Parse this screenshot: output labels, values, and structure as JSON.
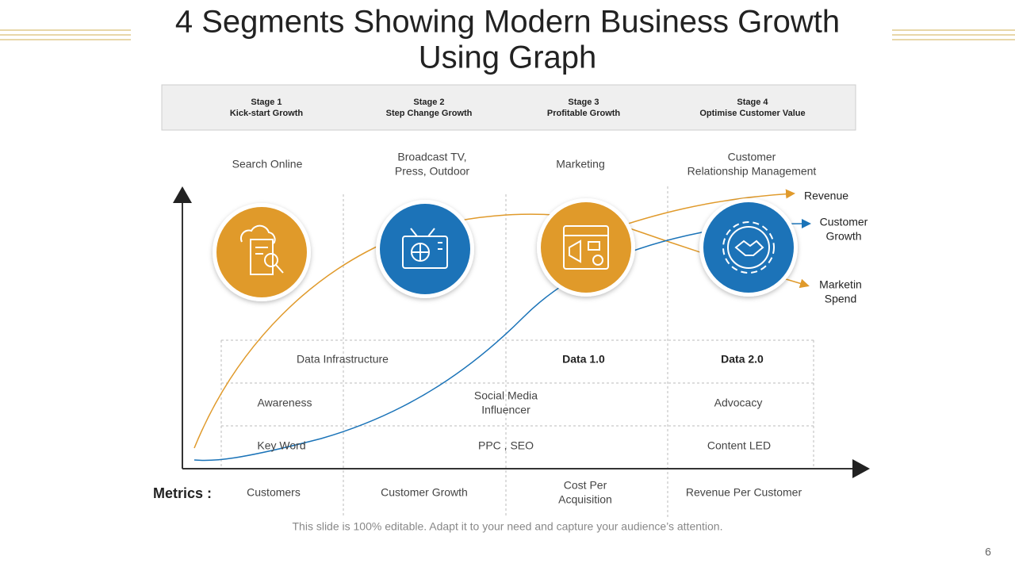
{
  "title": [
    "4 Segments Showing Modern Business Growth",
    "Using Graph"
  ],
  "stages": [
    {
      "label": "Stage 1",
      "name": "Kick-start Growth"
    },
    {
      "label": "Stage 2",
      "name": "Step Change  Growth"
    },
    {
      "label": "Stage 3",
      "name": "Profitable Growth"
    },
    {
      "label": "Stage 4",
      "name": "Optimise Customer Value"
    }
  ],
  "channels": [
    [
      "Search Online"
    ],
    [
      "Broadcast TV,",
      "Press, Outdoor"
    ],
    [
      "Marketing"
    ],
    [
      "Customer",
      "Relationship Management"
    ]
  ],
  "curve_labels": [
    [
      "Revenue"
    ],
    [
      "Customer",
      "Growth"
    ],
    [
      "Marketin",
      "Spend"
    ]
  ],
  "table": {
    "rows": [
      [
        [
          "Data Infrastructure"
        ],
        [
          "Data 1.0"
        ],
        [
          "Data 2.0"
        ]
      ],
      [
        [
          "Awareness"
        ],
        [
          "Social Media",
          "Influencer"
        ],
        [
          "Advocacy"
        ]
      ],
      [
        [
          "Key Word"
        ],
        [
          "PPC , SEO"
        ],
        [
          "Content LED"
        ]
      ]
    ]
  },
  "metrics": {
    "label": "Metrics :",
    "items": [
      [
        "Customers"
      ],
      [
        "Customer Growth"
      ],
      [
        "Cost Per",
        "Acquisition"
      ],
      [
        "Revenue Per Customer"
      ]
    ]
  },
  "footer": "This slide is 100% editable. Adapt it to your need and capture your audience’s attention.",
  "page_number": "6"
}
